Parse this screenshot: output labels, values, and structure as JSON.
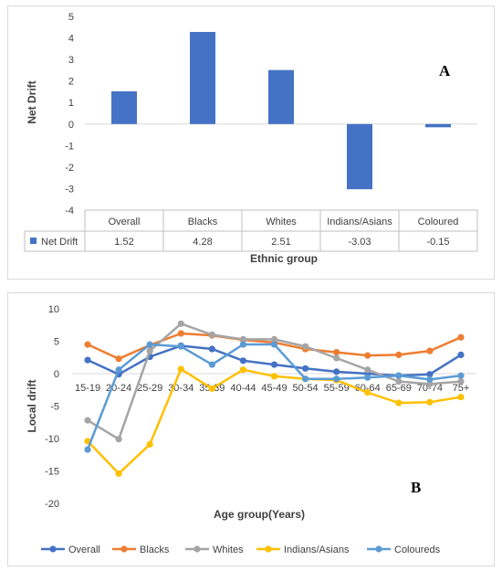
{
  "chart_data": [
    {
      "type": "bar",
      "panel_label": "A",
      "categories": [
        "Overall",
        "Blacks",
        "Whites",
        "Indians/Asians",
        "Coloured"
      ],
      "series": [
        {
          "name": "Net Drift",
          "values": [
            1.52,
            4.28,
            2.51,
            -3.03,
            -0.15
          ],
          "color": "#4472c4"
        }
      ],
      "data_table": [
        "1.52",
        "4.28",
        "2.51",
        "-3.03",
        "-0.15"
      ],
      "xlabel": "Ethnic group",
      "ylabel": "Net Drift",
      "ylim": [
        -4,
        5
      ],
      "yticks": [
        -4,
        -3,
        -2,
        -1,
        0,
        1,
        2,
        3,
        4,
        5
      ],
      "grid": false,
      "legend": "in data table"
    },
    {
      "type": "line",
      "panel_label": "B",
      "categories": [
        "15-19",
        "20-24",
        "25-29",
        "30-34",
        "35-39",
        "40-44",
        "45-49",
        "50-54",
        "55-59",
        "60-64",
        "65-69",
        "70-74",
        "75+"
      ],
      "series": [
        {
          "name": "Overall",
          "color": "#4472c4",
          "values": [
            2.1,
            -0.1,
            2.6,
            4.3,
            3.8,
            2.0,
            1.4,
            0.8,
            0.3,
            0.0,
            -0.3,
            -0.1,
            2.9
          ]
        },
        {
          "name": "Blacks",
          "color": "#ed7d31",
          "values": [
            4.5,
            2.3,
            4.4,
            6.2,
            5.9,
            5.2,
            4.8,
            3.8,
            3.3,
            2.8,
            2.9,
            3.5,
            5.6
          ]
        },
        {
          "name": "Whites",
          "color": "#a5a5a5",
          "values": [
            -7.2,
            -10.1,
            3.5,
            7.7,
            6.0,
            5.3,
            5.3,
            4.2,
            2.4,
            0.6,
            -1.2,
            -1.6,
            -1.2
          ]
        },
        {
          "name": "Indians/Asians",
          "color": "#ffc000",
          "values": [
            -10.4,
            -15.4,
            -10.9,
            0.7,
            -2.3,
            0.6,
            -0.4,
            -0.8,
            -1.0,
            -2.9,
            -4.5,
            -4.4,
            -3.6
          ]
        },
        {
          "name": "Coloureds",
          "color": "#5b9bd5",
          "values": [
            -11.7,
            0.6,
            4.5,
            4.2,
            1.4,
            4.5,
            4.5,
            -0.8,
            -0.8,
            -0.6,
            -0.3,
            -0.9,
            -0.3
          ]
        }
      ],
      "xlabel": "Age group(Years)",
      "ylabel": "Local drift",
      "ylim": [
        -20,
        10
      ],
      "yticks": [
        -20,
        -15,
        -10,
        -5,
        0,
        5,
        10
      ],
      "grid": false,
      "legend": "bottom"
    }
  ]
}
